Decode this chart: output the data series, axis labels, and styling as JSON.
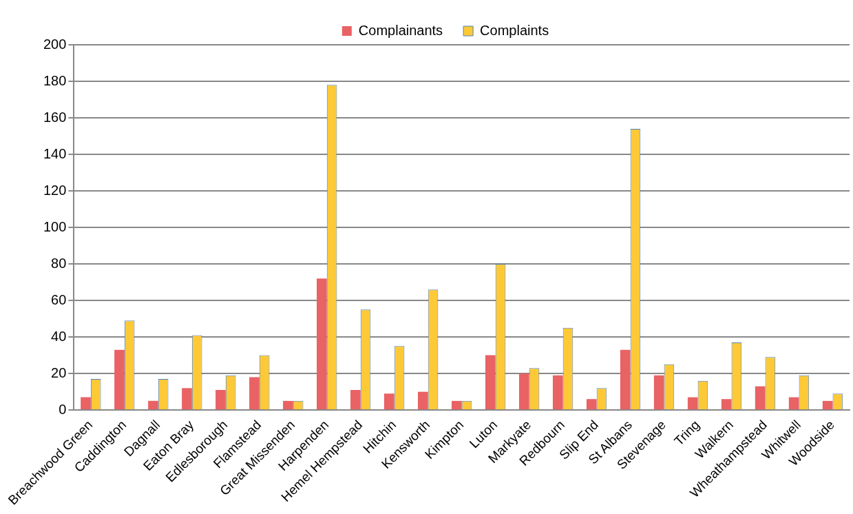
{
  "chart_data": {
    "type": "bar",
    "categories": [
      "Breachwood Green",
      "Caddington",
      "Dagnall",
      "Eaton Bray",
      "Edlesborough",
      "Flamstead",
      "Great Missenden",
      "Harpenden",
      "Hemel Hempstead",
      "Hitchin",
      "Kensworth",
      "Kimpton",
      "Luton",
      "Markyate",
      "Redbourn",
      "Slip End",
      "St Albans",
      "Stevenage",
      "Tring",
      "Walkern",
      "Wheathampstead",
      "Whitwell",
      "Woodside"
    ],
    "series": [
      {
        "name": "Complainants",
        "color": "#e96264",
        "values": [
          7,
          33,
          5,
          12,
          11,
          18,
          5,
          72,
          11,
          9,
          10,
          5,
          30,
          20,
          19,
          6,
          33,
          19,
          7,
          6,
          13,
          7,
          5
        ]
      },
      {
        "name": "Complaints",
        "color": "#fdc937",
        "values": [
          17,
          49,
          17,
          41,
          19,
          30,
          5,
          178,
          55,
          35,
          66,
          5,
          80,
          23,
          45,
          12,
          154,
          25,
          16,
          37,
          29,
          19,
          9
        ]
      }
    ],
    "ylim": [
      0,
      200
    ],
    "yticks": [
      0,
      20,
      40,
      60,
      80,
      100,
      120,
      140,
      160,
      180,
      200
    ],
    "grid": "y",
    "legend": "top"
  }
}
